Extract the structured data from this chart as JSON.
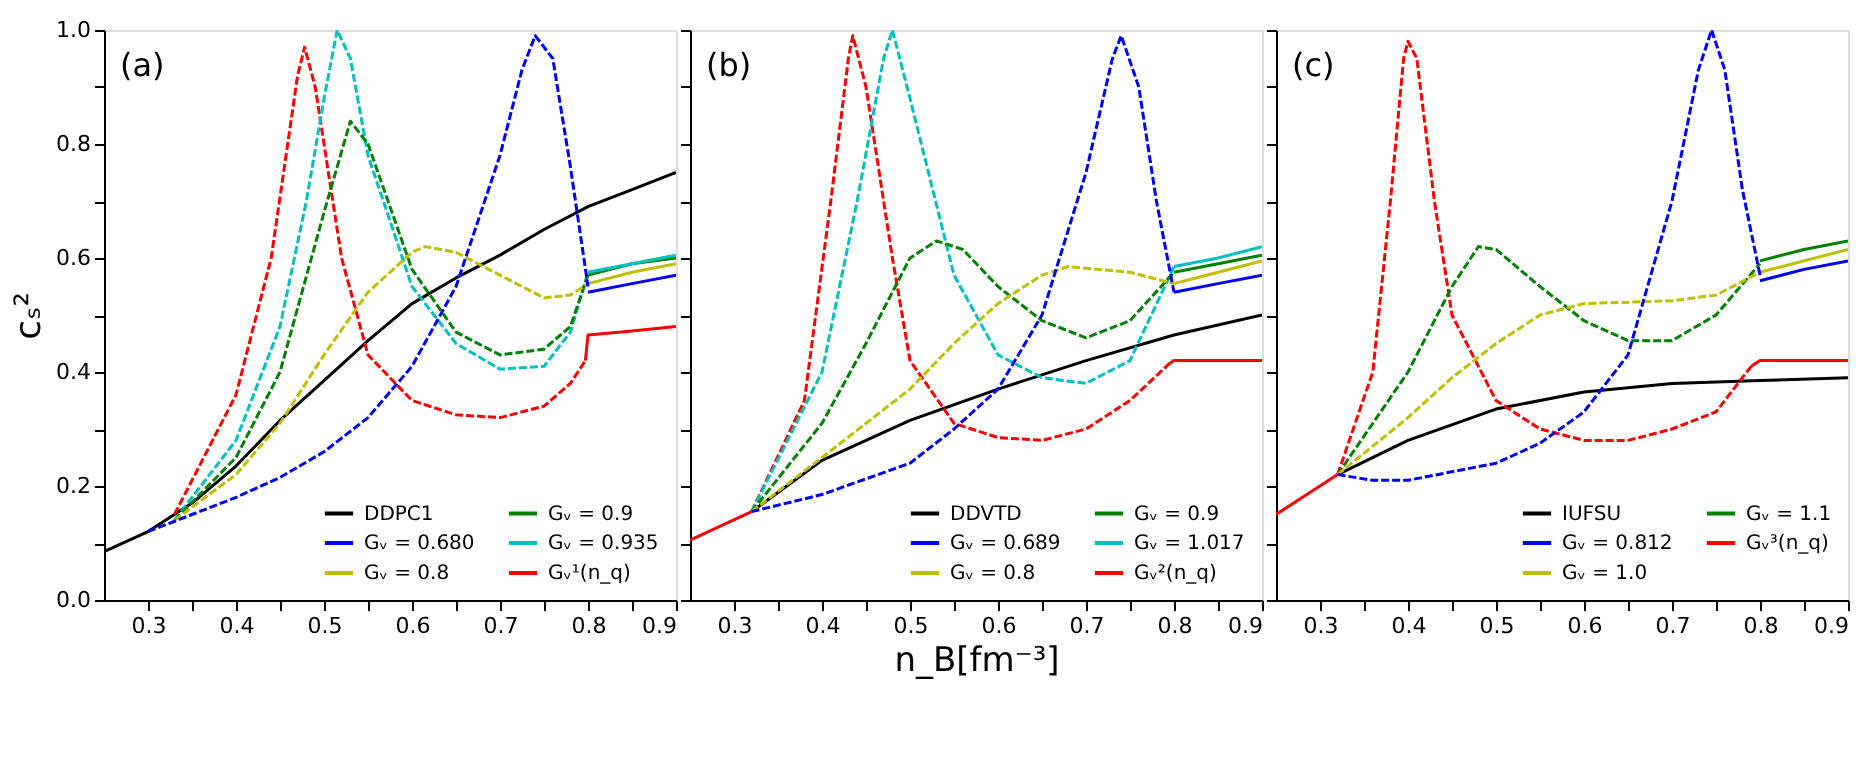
{
  "chart_data": [
    {
      "type": "line",
      "ylabel": "cₛ²",
      "annotations": [
        "(a)"
      ],
      "xlim": [
        0.25,
        0.9
      ],
      "ylim": [
        0,
        1
      ],
      "xticks": [
        0.3,
        {
          "value": 0.35,
          "label": null
        },
        0.4,
        {
          "value": 0.45,
          "label": null
        },
        0.5,
        {
          "value": 0.55,
          "label": null
        },
        0.6,
        {
          "value": 0.65,
          "label": null
        },
        0.7,
        {
          "value": 0.75,
          "label": null
        },
        0.8,
        {
          "value": 0.85,
          "label": null
        },
        0.9
      ],
      "yticks": [
        {
          "value": 0,
          "label": "0.0"
        },
        {
          "value": 0.1,
          "label": null
        },
        0.2,
        {
          "value": 0.3,
          "label": null
        },
        0.4,
        {
          "value": 0.5,
          "label": null
        },
        0.6,
        {
          "value": 0.7,
          "label": null
        },
        0.8,
        {
          "value": 0.9,
          "label": null
        },
        {
          "value": 1,
          "label": "1.0"
        }
      ],
      "grid": false,
      "legend": "bottom right",
      "series": [
        {
          "name": "DDPC1",
          "color": "#000000",
          "line_style": "solid",
          "x": [
            0.25,
            0.3,
            0.35,
            0.4,
            0.45,
            0.5,
            0.55,
            0.6,
            0.65,
            0.7,
            0.75,
            0.8,
            0.85,
            0.9
          ],
          "values": [
            0.085,
            0.12,
            0.17,
            0.235,
            0.315,
            0.385,
            0.455,
            0.52,
            0.565,
            0.605,
            0.65,
            0.69,
            0.72,
            0.75
          ]
        },
        {
          "color": "#0000ff",
          "line_style": "dashed",
          "x": [
            0.3,
            0.35,
            0.4,
            0.45,
            0.5,
            0.55,
            0.6,
            0.65,
            0.7,
            0.725,
            0.74,
            0.76,
            0.78,
            0.8
          ],
          "values": [
            0.12,
            0.15,
            0.18,
            0.215,
            0.26,
            0.32,
            0.41,
            0.55,
            0.78,
            0.93,
            0.99,
            0.95,
            0.76,
            0.55
          ]
        },
        {
          "name": "Gᵥ = 0.680",
          "color": "#0000ff",
          "line_style": "solid",
          "x": [
            0.8,
            0.85,
            0.9
          ],
          "values": [
            0.54,
            0.555,
            0.57
          ]
        },
        {
          "color": "#bfbf00",
          "line_style": "dashed",
          "x": [
            0.33,
            0.4,
            0.45,
            0.5,
            0.55,
            0.6,
            0.615,
            0.65,
            0.7,
            0.75,
            0.78,
            0.8
          ],
          "values": [
            0.14,
            0.22,
            0.31,
            0.43,
            0.54,
            0.61,
            0.62,
            0.61,
            0.57,
            0.53,
            0.535,
            0.555
          ]
        },
        {
          "name": "Gᵥ = 0.8",
          "color": "#bfbf00",
          "line_style": "solid",
          "x": [
            0.8,
            0.85,
            0.9
          ],
          "values": [
            0.555,
            0.575,
            0.59
          ]
        },
        {
          "color": "#008000",
          "line_style": "dashed",
          "x": [
            0.33,
            0.4,
            0.45,
            0.5,
            0.53,
            0.55,
            0.6,
            0.65,
            0.7,
            0.75,
            0.78,
            0.8
          ],
          "values": [
            0.14,
            0.25,
            0.4,
            0.68,
            0.84,
            0.8,
            0.58,
            0.47,
            0.43,
            0.44,
            0.48,
            0.57
          ]
        },
        {
          "name": "Gᵥ = 0.9",
          "color": "#008000",
          "line_style": "solid",
          "x": [
            0.8,
            0.85,
            0.9
          ],
          "values": [
            0.57,
            0.59,
            0.6
          ]
        },
        {
          "color": "#00bfbf",
          "line_style": "dashed",
          "x": [
            0.33,
            0.4,
            0.45,
            0.48,
            0.5,
            0.515,
            0.53,
            0.55,
            0.6,
            0.65,
            0.7,
            0.75,
            0.78,
            0.8
          ],
          "values": [
            0.14,
            0.28,
            0.48,
            0.7,
            0.88,
            1.0,
            0.95,
            0.78,
            0.55,
            0.45,
            0.405,
            0.41,
            0.47,
            0.575
          ]
        },
        {
          "name": "Gᵥ = 0.935",
          "color": "#00bfbf",
          "line_style": "solid",
          "x": [
            0.8,
            0.85,
            0.9
          ],
          "values": [
            0.575,
            0.59,
            0.605
          ]
        },
        {
          "color": "#ff0000",
          "line_style": "dashed",
          "x": [
            0.33,
            0.4,
            0.44,
            0.47,
            0.478,
            0.49,
            0.52,
            0.55,
            0.6,
            0.65,
            0.7,
            0.75,
            0.78,
            0.797
          ],
          "values": [
            0.15,
            0.36,
            0.6,
            0.92,
            0.97,
            0.9,
            0.6,
            0.43,
            0.35,
            0.325,
            0.32,
            0.34,
            0.38,
            0.42
          ]
        },
        {
          "name": "Gᵥ¹(n_q)",
          "color": "#ff0000",
          "line_style": "solid",
          "x": [
            0.797,
            0.8,
            0.85,
            0.9
          ],
          "values": [
            0.42,
            0.465,
            0.472,
            0.48
          ]
        }
      ]
    },
    {
      "type": "line",
      "xlabel": "n_B[fm⁻³]",
      "annotations": [
        "(b)"
      ],
      "xlim": [
        0.25,
        0.9
      ],
      "ylim": [
        0,
        1
      ],
      "tick_labels": "x",
      "xticks": [
        0.3,
        {
          "value": 0.35,
          "label": null
        },
        0.4,
        {
          "value": 0.45,
          "label": null
        },
        0.5,
        {
          "value": 0.55,
          "label": null
        },
        0.6,
        {
          "value": 0.65,
          "label": null
        },
        0.7,
        {
          "value": 0.75,
          "label": null
        },
        0.8,
        {
          "value": 0.85,
          "label": null
        },
        0.9
      ],
      "yticks": [
        {
          "value": 0,
          "label": null
        },
        {
          "value": 0.1,
          "label": null
        },
        {
          "value": 0.2,
          "label": null
        },
        {
          "value": 0.3,
          "label": null
        },
        {
          "value": 0.4,
          "label": null
        },
        {
          "value": 0.5,
          "label": null
        },
        {
          "value": 0.6,
          "label": null
        },
        {
          "value": 0.7,
          "label": null
        },
        {
          "value": 0.8,
          "label": null
        },
        {
          "value": 0.9,
          "label": null
        },
        {
          "value": 1,
          "label": null
        }
      ],
      "grid": false,
      "legend": "bottom right",
      "series": [
        {
          "color": "#ff0000",
          "line_style": "solid",
          "x": [
            0.25,
            0.32
          ],
          "values": [
            0.105,
            0.155
          ]
        },
        {
          "name": "DDVTD",
          "color": "#000000",
          "line_style": "solid",
          "x": [
            0.32,
            0.4,
            0.5,
            0.6,
            0.7,
            0.8,
            0.9
          ],
          "values": [
            0.155,
            0.245,
            0.315,
            0.37,
            0.42,
            0.465,
            0.5
          ]
        },
        {
          "color": "#0000ff",
          "line_style": "dashed",
          "x": [
            0.32,
            0.4,
            0.5,
            0.55,
            0.6,
            0.65,
            0.7,
            0.73,
            0.74,
            0.76,
            0.78,
            0.8
          ],
          "values": [
            0.155,
            0.185,
            0.24,
            0.3,
            0.37,
            0.5,
            0.75,
            0.95,
            0.99,
            0.9,
            0.7,
            0.54
          ]
        },
        {
          "name": "Gᵥ = 0.689",
          "color": "#0000ff",
          "line_style": "solid",
          "x": [
            0.8,
            0.85,
            0.9
          ],
          "values": [
            0.54,
            0.555,
            0.57
          ]
        },
        {
          "color": "#bfbf00",
          "line_style": "dashed",
          "x": [
            0.32,
            0.4,
            0.5,
            0.55,
            0.6,
            0.65,
            0.68,
            0.75,
            0.8
          ],
          "values": [
            0.155,
            0.25,
            0.37,
            0.45,
            0.52,
            0.57,
            0.585,
            0.575,
            0.555
          ]
        },
        {
          "name": "Gᵥ = 0.8",
          "color": "#bfbf00",
          "line_style": "solid",
          "x": [
            0.8,
            0.85,
            0.9
          ],
          "values": [
            0.555,
            0.575,
            0.595
          ]
        },
        {
          "color": "#008000",
          "line_style": "dashed",
          "x": [
            0.32,
            0.4,
            0.45,
            0.5,
            0.53,
            0.56,
            0.6,
            0.65,
            0.7,
            0.75,
            0.8
          ],
          "values": [
            0.155,
            0.31,
            0.45,
            0.6,
            0.63,
            0.615,
            0.55,
            0.49,
            0.46,
            0.49,
            0.575
          ]
        },
        {
          "name": "Gᵥ = 0.9",
          "color": "#008000",
          "line_style": "solid",
          "x": [
            0.8,
            0.85,
            0.9
          ],
          "values": [
            0.575,
            0.59,
            0.605
          ]
        },
        {
          "color": "#00bfbf",
          "line_style": "dashed",
          "x": [
            0.32,
            0.4,
            0.44,
            0.47,
            0.48,
            0.5,
            0.55,
            0.6,
            0.65,
            0.7,
            0.75,
            0.8
          ],
          "values": [
            0.155,
            0.4,
            0.7,
            0.95,
            1.0,
            0.88,
            0.57,
            0.43,
            0.39,
            0.38,
            0.42,
            0.585
          ]
        },
        {
          "name": "Gᵥ = 1.017",
          "color": "#00bfbf",
          "line_style": "solid",
          "x": [
            0.8,
            0.85,
            0.9
          ],
          "values": [
            0.585,
            0.6,
            0.62
          ]
        },
        {
          "color": "#ff0000",
          "line_style": "dashed",
          "x": [
            0.32,
            0.38,
            0.41,
            0.43,
            0.435,
            0.45,
            0.48,
            0.5,
            0.55,
            0.6,
            0.65,
            0.7,
            0.75,
            0.795
          ],
          "values": [
            0.155,
            0.35,
            0.7,
            0.95,
            0.99,
            0.9,
            0.6,
            0.42,
            0.31,
            0.285,
            0.28,
            0.3,
            0.35,
            0.415
          ]
        },
        {
          "name": "Gᵥ²(n_q)",
          "color": "#ff0000",
          "line_style": "solid",
          "x": [
            0.795,
            0.8,
            0.9
          ],
          "values": [
            0.415,
            0.42,
            0.42
          ]
        }
      ]
    },
    {
      "type": "line",
      "annotations": [
        "(c)"
      ],
      "xlim": [
        0.25,
        0.9
      ],
      "ylim": [
        0,
        1
      ],
      "tick_labels": "x",
      "xticks": [
        0.3,
        {
          "value": 0.35,
          "label": null
        },
        0.4,
        {
          "value": 0.45,
          "label": null
        },
        0.5,
        {
          "value": 0.55,
          "label": null
        },
        0.6,
        {
          "value": 0.65,
          "label": null
        },
        0.7,
        {
          "value": 0.75,
          "label": null
        },
        0.8,
        {
          "value": 0.85,
          "label": null
        },
        0.9
      ],
      "yticks": [
        {
          "value": 0,
          "label": null
        },
        {
          "value": 0.1,
          "label": null
        },
        {
          "value": 0.2,
          "label": null
        },
        {
          "value": 0.3,
          "label": null
        },
        {
          "value": 0.4,
          "label": null
        },
        {
          "value": 0.5,
          "label": null
        },
        {
          "value": 0.6,
          "label": null
        },
        {
          "value": 0.7,
          "label": null
        },
        {
          "value": 0.8,
          "label": null
        },
        {
          "value": 0.9,
          "label": null
        },
        {
          "value": 1,
          "label": null
        }
      ],
      "grid": false,
      "legend": "bottom right",
      "series": [
        {
          "color": "#ff0000",
          "line_style": "solid",
          "x": [
            0.25,
            0.32
          ],
          "values": [
            0.15,
            0.22
          ]
        },
        {
          "name": "IUFSU",
          "color": "#000000",
          "line_style": "solid",
          "x": [
            0.32,
            0.4,
            0.5,
            0.6,
            0.7,
            0.8,
            0.9
          ],
          "values": [
            0.22,
            0.28,
            0.335,
            0.365,
            0.38,
            0.385,
            0.39
          ]
        },
        {
          "color": "#0000ff",
          "line_style": "dashed",
          "x": [
            0.32,
            0.36,
            0.4,
            0.5,
            0.55,
            0.6,
            0.65,
            0.7,
            0.73,
            0.745,
            0.76,
            0.78,
            0.8
          ],
          "values": [
            0.22,
            0.21,
            0.21,
            0.24,
            0.275,
            0.33,
            0.43,
            0.7,
            0.93,
            1.0,
            0.93,
            0.72,
            0.57
          ]
        },
        {
          "name": "Gᵥ = 0.812",
          "color": "#0000ff",
          "line_style": "solid",
          "x": [
            0.8,
            0.85,
            0.9
          ],
          "values": [
            0.56,
            0.58,
            0.595
          ]
        },
        {
          "color": "#bfbf00",
          "line_style": "dashed",
          "x": [
            0.32,
            0.4,
            0.45,
            0.5,
            0.55,
            0.6,
            0.7,
            0.75,
            0.8
          ],
          "values": [
            0.22,
            0.32,
            0.39,
            0.45,
            0.5,
            0.52,
            0.525,
            0.535,
            0.575
          ]
        },
        {
          "name": "Gᵥ = 1.0",
          "color": "#bfbf00",
          "line_style": "solid",
          "x": [
            0.8,
            0.85,
            0.9
          ],
          "values": [
            0.575,
            0.595,
            0.615
          ]
        },
        {
          "color": "#008000",
          "line_style": "dashed",
          "x": [
            0.32,
            0.4,
            0.45,
            0.48,
            0.5,
            0.55,
            0.6,
            0.65,
            0.7,
            0.75,
            0.8
          ],
          "values": [
            0.22,
            0.4,
            0.55,
            0.62,
            0.615,
            0.55,
            0.49,
            0.455,
            0.455,
            0.5,
            0.59
          ]
        },
        {
          "name": "Gᵥ = 1.1",
          "color": "#008000",
          "line_style": "solid",
          "x": [
            0.8,
            0.85,
            0.9
          ],
          "values": [
            0.595,
            0.615,
            0.63
          ]
        },
        {
          "color": "#ff0000",
          "line_style": "dashed",
          "x": [
            0.32,
            0.36,
            0.38,
            0.395,
            0.4,
            0.41,
            0.43,
            0.45,
            0.5,
            0.55,
            0.6,
            0.65,
            0.7,
            0.75,
            0.79
          ],
          "values": [
            0.22,
            0.4,
            0.7,
            0.95,
            0.98,
            0.95,
            0.7,
            0.5,
            0.35,
            0.3,
            0.28,
            0.28,
            0.3,
            0.33,
            0.41
          ]
        },
        {
          "name": "Gᵥ³(n_q)",
          "color": "#ff0000",
          "line_style": "solid",
          "x": [
            0.79,
            0.8,
            0.9
          ],
          "values": [
            0.41,
            0.42,
            0.42
          ]
        }
      ]
    }
  ]
}
